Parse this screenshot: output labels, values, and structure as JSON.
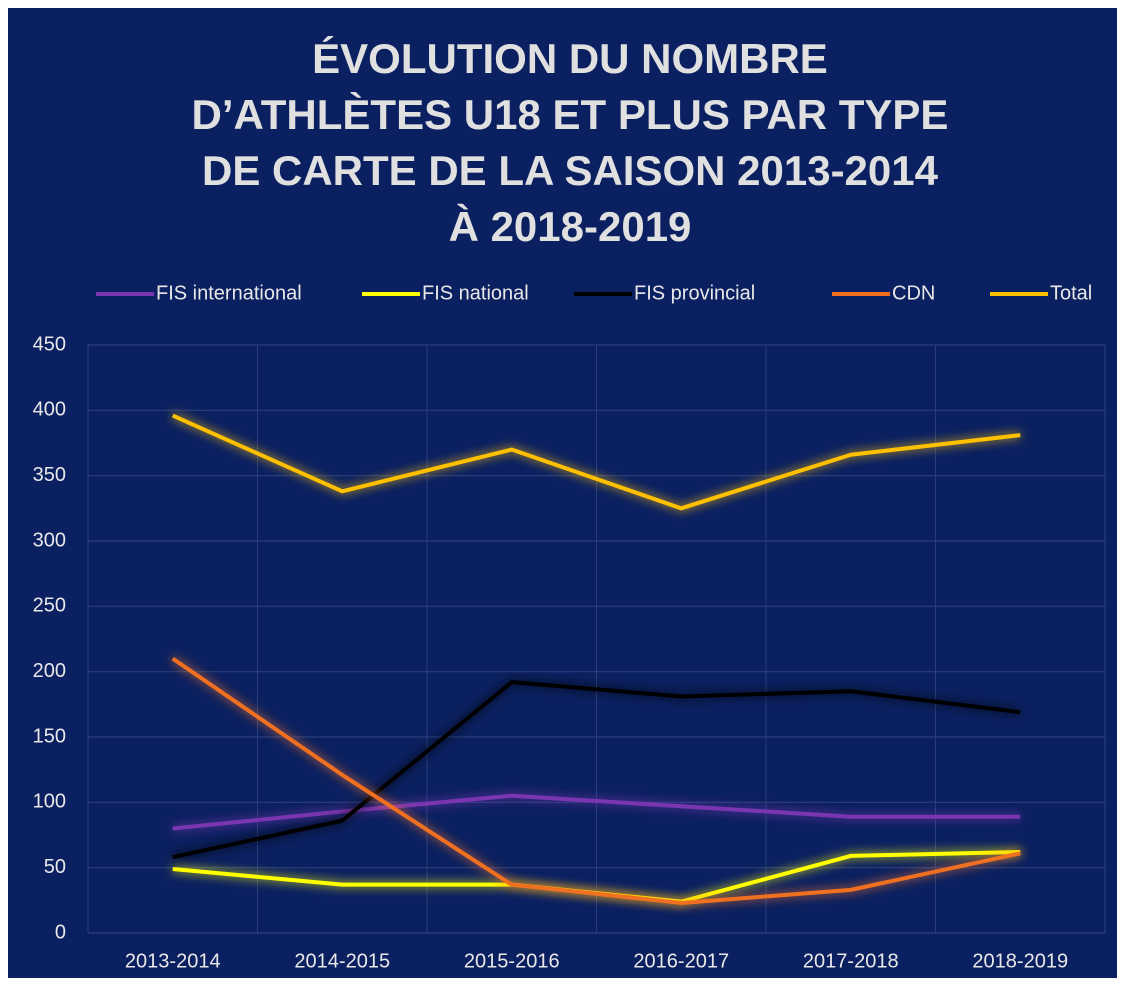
{
  "chart_data": {
    "type": "line",
    "title": [
      "ÉVOLUTION DU NOMBRE",
      "D’ATHLÈTES U18 ET PLUS PAR TYPE",
      "DE CARTE DE LA SAISON 2013-2014",
      "À 2018-2019"
    ],
    "categories": [
      "2013-2014",
      "2014-2015",
      "2015-2016",
      "2016-2017",
      "2017-2018",
      "2018-2019"
    ],
    "series": [
      {
        "name": "FIS international",
        "color": "#7a35b0",
        "values": [
          80,
          93,
          105,
          97,
          89,
          89
        ]
      },
      {
        "name": "FIS national",
        "color": "#ffff00",
        "values": [
          49,
          37,
          37,
          24,
          59,
          62
        ]
      },
      {
        "name": "FIS provincial",
        "color": "#000000",
        "values": [
          58,
          86,
          192,
          181,
          185,
          169
        ]
      },
      {
        "name": "CDN",
        "color": "#f07020",
        "values": [
          210,
          121,
          37,
          23,
          33,
          61
        ]
      },
      {
        "name": "Total",
        "color": "#ffc000",
        "values": [
          396,
          338,
          370,
          325,
          366,
          381
        ]
      }
    ],
    "ylim": [
      0,
      450
    ],
    "yticks": [
      0,
      50,
      100,
      150,
      200,
      250,
      300,
      350,
      400,
      450
    ],
    "grid": true,
    "legend": "top"
  }
}
